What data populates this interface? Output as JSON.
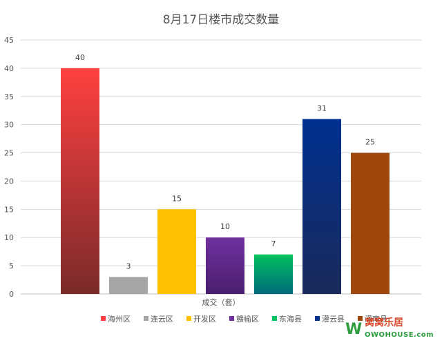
{
  "chart_data": {
    "type": "bar",
    "title": "8月17日楼市成交数量",
    "xlabel": "成交（套）",
    "ylabel": "",
    "ylim": [
      0,
      45
    ],
    "yticks": [
      0,
      5,
      10,
      15,
      20,
      25,
      30,
      35,
      40,
      45
    ],
    "grid": true,
    "legend_position": "bottom",
    "series": [
      {
        "name": "海州区",
        "value": 40,
        "color": "#ff4040",
        "color_end": "#7a2a2a"
      },
      {
        "name": "连云区",
        "value": 3,
        "color": "#a6a6a6",
        "color_end": "#a6a6a6"
      },
      {
        "name": "开发区",
        "value": 15,
        "color": "#ffc000",
        "color_end": "#ffc000"
      },
      {
        "name": "赣榆区",
        "value": 10,
        "color": "#7030a0",
        "color_end": "#4a1f6e"
      },
      {
        "name": "东海县",
        "value": 7,
        "color": "#00c060",
        "color_end": "#006b7a"
      },
      {
        "name": "灌云县",
        "value": 31,
        "color": "#003090",
        "color_end": "#1a2a5a"
      },
      {
        "name": "灌南县",
        "value": 25,
        "color": "#9e480e",
        "color_end": "#9e480e"
      }
    ]
  },
  "watermark": {
    "letter": "W",
    "brand_cn": "窝窝乐居",
    "brand_en": "OWOHOUSE.com"
  }
}
